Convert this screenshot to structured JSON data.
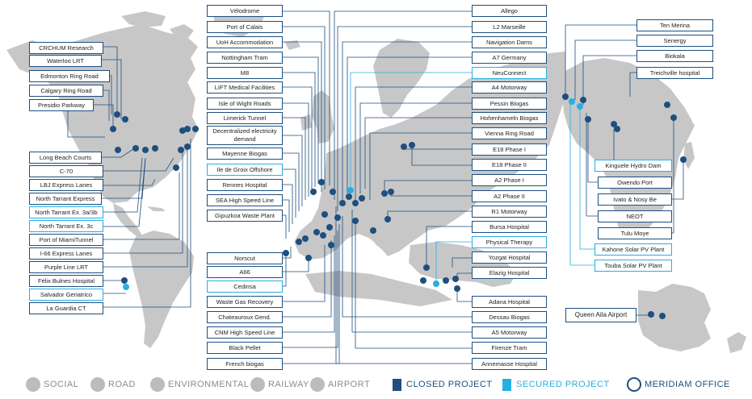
{
  "colors": {
    "land": "#c7c7c7",
    "line": "#1e4f7e",
    "closed": "#1e4f7e",
    "secured": "#29aee3",
    "legend_text": "#8c8c8c"
  },
  "labels": {
    "vel": "Vélodrome",
    "poc": "Port of Calais",
    "uoh": "UoH Accommodation",
    "ntr": "Nottingham Tram",
    "m8": "M8",
    "lift": "LIFT Medical Facilities",
    "iow": "Isle of Wight Roads",
    "lim": "Limerick Tunnel",
    "dec": "Decentralized electricity demand",
    "may": "Mayenne Biogas",
    "igo": "Ile de Groix Offshore",
    "ren": "Rennes Hospital",
    "sea": "SEA High Speed Line",
    "gip": "Gipuzkoa Waste Plant",
    "nor": "Norscut",
    "a66": "A66",
    "ced": "Cedinsa",
    "wgr": "Waste Gas Recovery",
    "cha": "Chateauroux Gend.",
    "cnm": "CNM High Speed Line",
    "bpe": "Black Pellet",
    "fre": "French biogas",
    "all": "Allego",
    "l2m": "L2 Marseille",
    "nav": "Navigation Dams",
    "a7g": "A7 Germany",
    "neu": "NeuConnect",
    "a4m": "A4 Motorway",
    "pes": "Pessin Biogas",
    "hoh": "Hohenhameln Biogas",
    "vrr": "Vienna Ring Road",
    "e18a": "E18 Phase I",
    "e18b": "E18 Phase II",
    "a2a": "A2 Phase I",
    "a2b": "A2 Phase II",
    "r1m": "R1 Motorway",
    "bur": "Bursa Hospital",
    "phy": "Physical Therapy",
    "yoz": "Yozgat Hospital",
    "ela": "Elazig Hospital",
    "ada": "Adana Hospital",
    "des": "Dessau Biogas",
    "a5m": "A5 Motorway",
    "fir": "Firenze Tram",
    "ann": "Annemasse Hospital",
    "crc": "CRCHUM Research",
    "wat": "Waterloo LRT",
    "edm": "Edmonton Ring Road",
    "cal": "Calgary Ring Road",
    "pre": "Presidio Parkway",
    "lbc": "Long Beach Courts",
    "c70": "C-70",
    "lbj": "LBJ Express Lanes",
    "nte": "North Tarrant Express",
    "nt3a": "North Tarrant Ex. 3a/3b",
    "nt3c": "North Tarrant Ex. 3c",
    "pom": "Port of MiamiTunnel",
    "i66": "I-66 Express Lanes",
    "pur": "Purple Line LRT",
    "fel": "Félix Bulnes Hospital",
    "sal": "Salvador Geriatrico",
    "lag": "La Guardia CT",
    "ten": "Ten Merina",
    "sen": "Senergy",
    "bio": "Biokala",
    "tre": "Treichville hospital",
    "kin": "Kinguele Hydro Dam",
    "owe": "Owendo Port",
    "iva": "Ivato & Nosy Be",
    "neo": "NEOT",
    "tul": "Tulu Moye",
    "kah": "Kahone Solar PV Plant",
    "tou": "Touba Solar PV Plant",
    "qaa": "Queen Aila Airport"
  },
  "legend": {
    "social": "SOCIAL",
    "road": "ROAD",
    "environmental": "ENVIRONMENTAL",
    "railway": "RAILWAY",
    "airport": "AIRPORT",
    "closed": "CLOSED PROJECT",
    "secured": "SECURED PROJECT",
    "office": "MERIDIAM OFFICE"
  }
}
